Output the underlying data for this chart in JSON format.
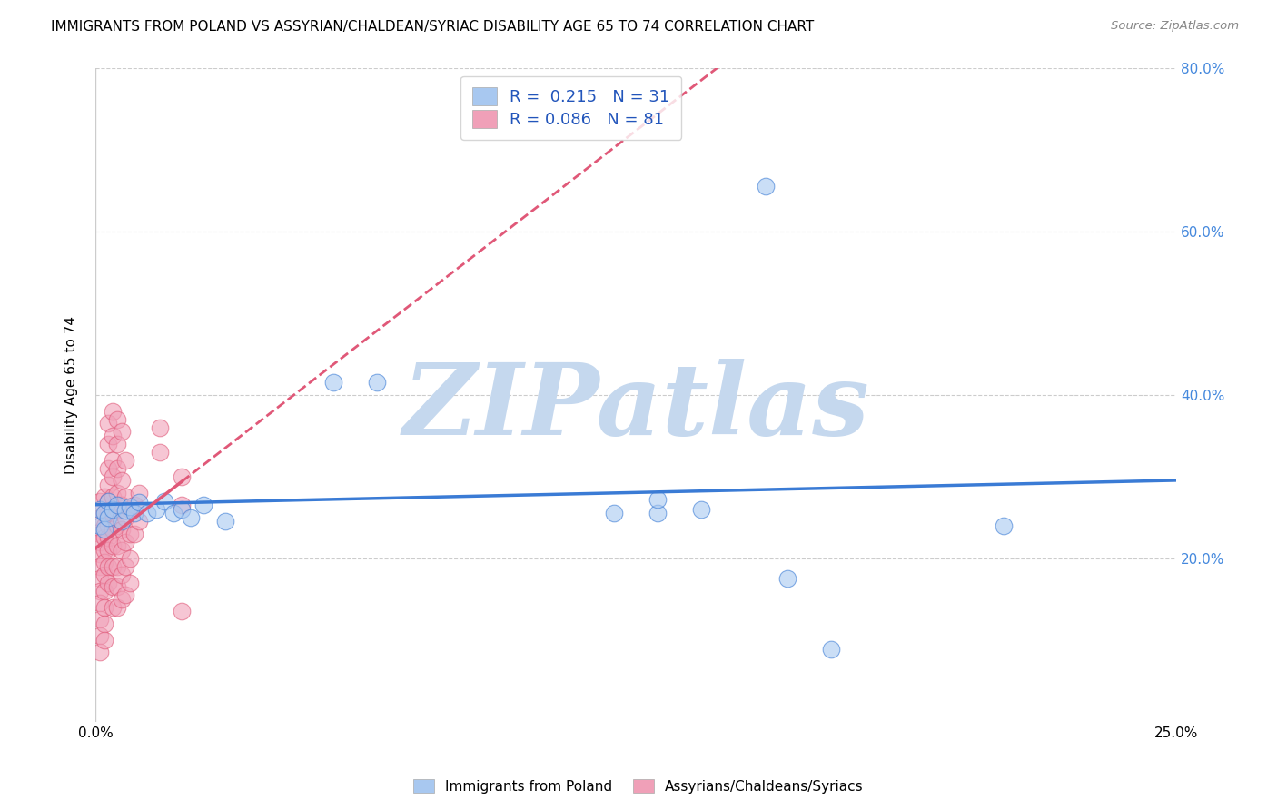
{
  "title": "IMMIGRANTS FROM POLAND VS ASSYRIAN/CHALDEAN/SYRIAC DISABILITY AGE 65 TO 74 CORRELATION CHART",
  "source": "Source: ZipAtlas.com",
  "xlabel": "",
  "ylabel": "Disability Age 65 to 74",
  "xlim": [
    0.0,
    0.25
  ],
  "ylim": [
    0.0,
    0.8
  ],
  "xticks": [
    0.0,
    0.05,
    0.1,
    0.15,
    0.2,
    0.25
  ],
  "yticks": [
    0.0,
    0.2,
    0.4,
    0.6,
    0.8
  ],
  "xticklabels": [
    "0.0%",
    "",
    "",
    "",
    "",
    "25.0%"
  ],
  "yticklabels": [
    "",
    "20.0%",
    "40.0%",
    "60.0%",
    "80.0%"
  ],
  "legend_labels": [
    "Immigrants from Poland",
    "Assyrians/Chaldeans/Syriacs"
  ],
  "blue_color": "#A8C8F0",
  "pink_color": "#F0A0B8",
  "blue_line_color": "#3A7BD5",
  "pink_line_color": "#E05878",
  "R_blue": 0.215,
  "N_blue": 31,
  "R_pink": 0.086,
  "N_pink": 81,
  "blue_points": [
    [
      0.001,
      0.26
    ],
    [
      0.001,
      0.24
    ],
    [
      0.002,
      0.255
    ],
    [
      0.002,
      0.235
    ],
    [
      0.003,
      0.27
    ],
    [
      0.003,
      0.25
    ],
    [
      0.004,
      0.26
    ],
    [
      0.005,
      0.265
    ],
    [
      0.006,
      0.245
    ],
    [
      0.007,
      0.258
    ],
    [
      0.008,
      0.263
    ],
    [
      0.009,
      0.255
    ],
    [
      0.01,
      0.268
    ],
    [
      0.012,
      0.255
    ],
    [
      0.014,
      0.26
    ],
    [
      0.016,
      0.27
    ],
    [
      0.018,
      0.255
    ],
    [
      0.02,
      0.26
    ],
    [
      0.022,
      0.25
    ],
    [
      0.025,
      0.265
    ],
    [
      0.03,
      0.245
    ],
    [
      0.055,
      0.415
    ],
    [
      0.065,
      0.415
    ],
    [
      0.12,
      0.255
    ],
    [
      0.13,
      0.255
    ],
    [
      0.14,
      0.26
    ],
    [
      0.155,
      0.655
    ],
    [
      0.16,
      0.175
    ],
    [
      0.17,
      0.088
    ],
    [
      0.21,
      0.24
    ],
    [
      0.13,
      0.272
    ]
  ],
  "pink_points": [
    [
      0.001,
      0.27
    ],
    [
      0.001,
      0.25
    ],
    [
      0.001,
      0.23
    ],
    [
      0.001,
      0.22
    ],
    [
      0.001,
      0.205
    ],
    [
      0.001,
      0.19
    ],
    [
      0.001,
      0.175
    ],
    [
      0.001,
      0.16
    ],
    [
      0.001,
      0.145
    ],
    [
      0.001,
      0.125
    ],
    [
      0.001,
      0.105
    ],
    [
      0.001,
      0.085
    ],
    [
      0.002,
      0.275
    ],
    [
      0.002,
      0.255
    ],
    [
      0.002,
      0.24
    ],
    [
      0.002,
      0.225
    ],
    [
      0.002,
      0.21
    ],
    [
      0.002,
      0.195
    ],
    [
      0.002,
      0.18
    ],
    [
      0.002,
      0.16
    ],
    [
      0.002,
      0.14
    ],
    [
      0.002,
      0.12
    ],
    [
      0.002,
      0.1
    ],
    [
      0.003,
      0.365
    ],
    [
      0.003,
      0.34
    ],
    [
      0.003,
      0.31
    ],
    [
      0.003,
      0.29
    ],
    [
      0.003,
      0.27
    ],
    [
      0.003,
      0.255
    ],
    [
      0.003,
      0.24
    ],
    [
      0.003,
      0.225
    ],
    [
      0.003,
      0.21
    ],
    [
      0.003,
      0.19
    ],
    [
      0.003,
      0.17
    ],
    [
      0.004,
      0.38
    ],
    [
      0.004,
      0.35
    ],
    [
      0.004,
      0.32
    ],
    [
      0.004,
      0.3
    ],
    [
      0.004,
      0.275
    ],
    [
      0.004,
      0.255
    ],
    [
      0.004,
      0.235
    ],
    [
      0.004,
      0.215
    ],
    [
      0.004,
      0.19
    ],
    [
      0.004,
      0.165
    ],
    [
      0.004,
      0.14
    ],
    [
      0.005,
      0.37
    ],
    [
      0.005,
      0.34
    ],
    [
      0.005,
      0.31
    ],
    [
      0.005,
      0.28
    ],
    [
      0.005,
      0.26
    ],
    [
      0.005,
      0.24
    ],
    [
      0.005,
      0.215
    ],
    [
      0.005,
      0.19
    ],
    [
      0.005,
      0.165
    ],
    [
      0.005,
      0.14
    ],
    [
      0.006,
      0.355
    ],
    [
      0.006,
      0.295
    ],
    [
      0.006,
      0.265
    ],
    [
      0.006,
      0.235
    ],
    [
      0.006,
      0.21
    ],
    [
      0.006,
      0.18
    ],
    [
      0.006,
      0.15
    ],
    [
      0.007,
      0.32
    ],
    [
      0.007,
      0.275
    ],
    [
      0.007,
      0.25
    ],
    [
      0.007,
      0.22
    ],
    [
      0.007,
      0.19
    ],
    [
      0.007,
      0.155
    ],
    [
      0.008,
      0.26
    ],
    [
      0.008,
      0.23
    ],
    [
      0.008,
      0.2
    ],
    [
      0.008,
      0.17
    ],
    [
      0.009,
      0.265
    ],
    [
      0.009,
      0.23
    ],
    [
      0.01,
      0.28
    ],
    [
      0.01,
      0.245
    ],
    [
      0.015,
      0.36
    ],
    [
      0.015,
      0.33
    ],
    [
      0.02,
      0.3
    ],
    [
      0.02,
      0.265
    ],
    [
      0.02,
      0.135
    ]
  ],
  "watermark_text": "ZIPatlas",
  "watermark_color": "#C5D8EE",
  "grid_color": "#CCCCCC",
  "background_color": "#FFFFFF",
  "pink_line_solid_end": 0.135,
  "blue_line_color_text": "#2255BB",
  "pink_line_color_text": "#CC3366"
}
